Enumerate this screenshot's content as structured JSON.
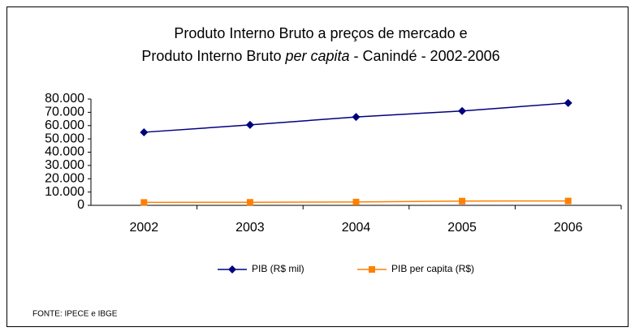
{
  "chart_data": {
    "type": "line",
    "title": [
      "Produto Interno Bruto a preços de mercado  e",
      "Produto Interno Bruto ",
      "per capita",
      " - Canindé - 2002-2006"
    ],
    "categories": [
      "2002",
      "2003",
      "2004",
      "2005",
      "2006"
    ],
    "series": [
      {
        "name": "PIB (R$ mil)",
        "color": "#000080",
        "marker": "diamond",
        "values": [
          55000,
          60500,
          66500,
          71000,
          77000
        ]
      },
      {
        "name": "PIB per capita (R$)",
        "color": "#ff8000",
        "marker": "square",
        "values": [
          2200,
          2300,
          2500,
          3200,
          3300
        ]
      }
    ],
    "ylim": [
      0,
      80000
    ],
    "yticks": [
      0,
      {
        "value": 10000,
        "label": "10.000"
      },
      {
        "value": 20000,
        "label": "20.000"
      },
      {
        "value": 30000,
        "label": "30.000"
      },
      {
        "value": 40000,
        "label": "40.000"
      },
      {
        "value": 50000,
        "label": "50.000"
      },
      {
        "value": 60000,
        "label": "60.000"
      },
      {
        "value": 70000,
        "label": "70.000"
      },
      {
        "value": 80000,
        "label": "80.000"
      }
    ],
    "legend": "bottom",
    "source": "FONTE: IPECE e IBGE"
  }
}
